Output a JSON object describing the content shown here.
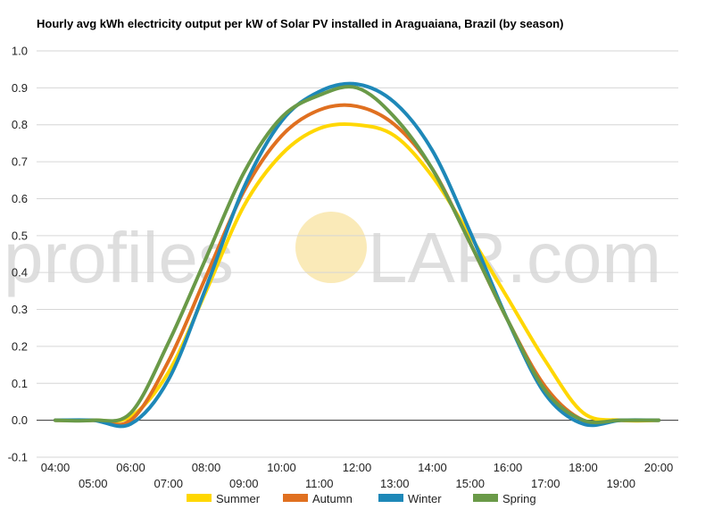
{
  "chart_data": {
    "type": "line",
    "title": "Hourly avg kWh electricity output per kW of Solar PV installed in Araguaiana, Brazil (by season)",
    "xlabel": "",
    "ylabel": "",
    "categories": [
      "04:00",
      "05:00",
      "06:00",
      "07:00",
      "08:00",
      "09:00",
      "10:00",
      "11:00",
      "12:00",
      "13:00",
      "14:00",
      "15:00",
      "16:00",
      "17:00",
      "18:00",
      "19:00",
      "20:00"
    ],
    "ylim": [
      -0.1,
      1.0
    ],
    "yticks": [
      "1.0",
      "0.9",
      "0.8",
      "0.7",
      "0.6",
      "0.5",
      "0.4",
      "0.3",
      "0.2",
      "0.1",
      "0.0",
      "-0.1"
    ],
    "grid": true,
    "legend_position": "bottom",
    "series": [
      {
        "name": "Summer",
        "color": "#ffd700",
        "values": [
          0.0,
          0.0,
          0.01,
          0.13,
          0.35,
          0.58,
          0.72,
          0.79,
          0.8,
          0.77,
          0.66,
          0.5,
          0.33,
          0.16,
          0.02,
          0.0,
          0.0
        ]
      },
      {
        "name": "Autumn",
        "color": "#e07020",
        "values": [
          0.0,
          0.0,
          0.0,
          0.16,
          0.39,
          0.62,
          0.77,
          0.84,
          0.85,
          0.8,
          0.68,
          0.48,
          0.27,
          0.09,
          0.0,
          0.0,
          0.0
        ]
      },
      {
        "name": "Winter",
        "color": "#1e88b8",
        "values": [
          0.0,
          0.0,
          -0.01,
          0.11,
          0.36,
          0.63,
          0.81,
          0.89,
          0.91,
          0.86,
          0.73,
          0.51,
          0.27,
          0.07,
          -0.01,
          0.0,
          0.0
        ]
      },
      {
        "name": "Spring",
        "color": "#6a9a48",
        "values": [
          0.0,
          0.0,
          0.02,
          0.21,
          0.44,
          0.67,
          0.82,
          0.88,
          0.9,
          0.82,
          0.68,
          0.48,
          0.27,
          0.08,
          0.0,
          0.0,
          0.0
        ]
      }
    ]
  },
  "watermark": {
    "left_text": "profiles",
    "right_text": "LAR.com",
    "sun_color": "#f8e3a0"
  }
}
